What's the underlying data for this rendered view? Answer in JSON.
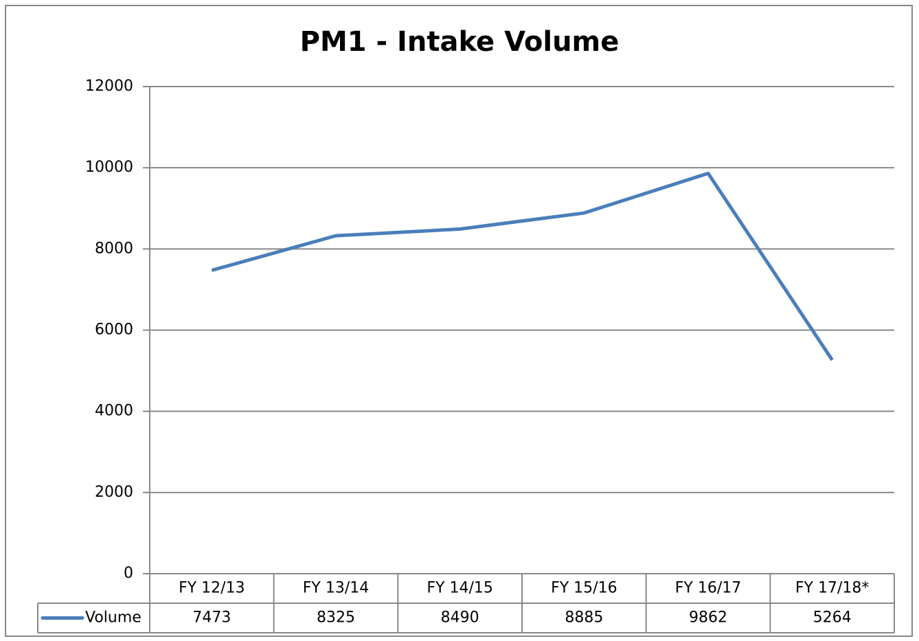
{
  "chart_data": {
    "type": "line",
    "title": "PM1 - Intake Volume",
    "categories": [
      "FY 12/13",
      "FY 13/14",
      "FY 14/15",
      "FY 15/16",
      "FY 16/17",
      "FY 17/18*"
    ],
    "series": [
      {
        "name": "Volume",
        "color": "#4a7ebb",
        "values": [
          7473,
          8325,
          8490,
          8885,
          9862,
          5264
        ]
      }
    ],
    "ylim": [
      0,
      12000
    ],
    "yticks": [
      0,
      2000,
      4000,
      6000,
      8000,
      10000,
      12000
    ],
    "grid": true,
    "data_table": true
  }
}
